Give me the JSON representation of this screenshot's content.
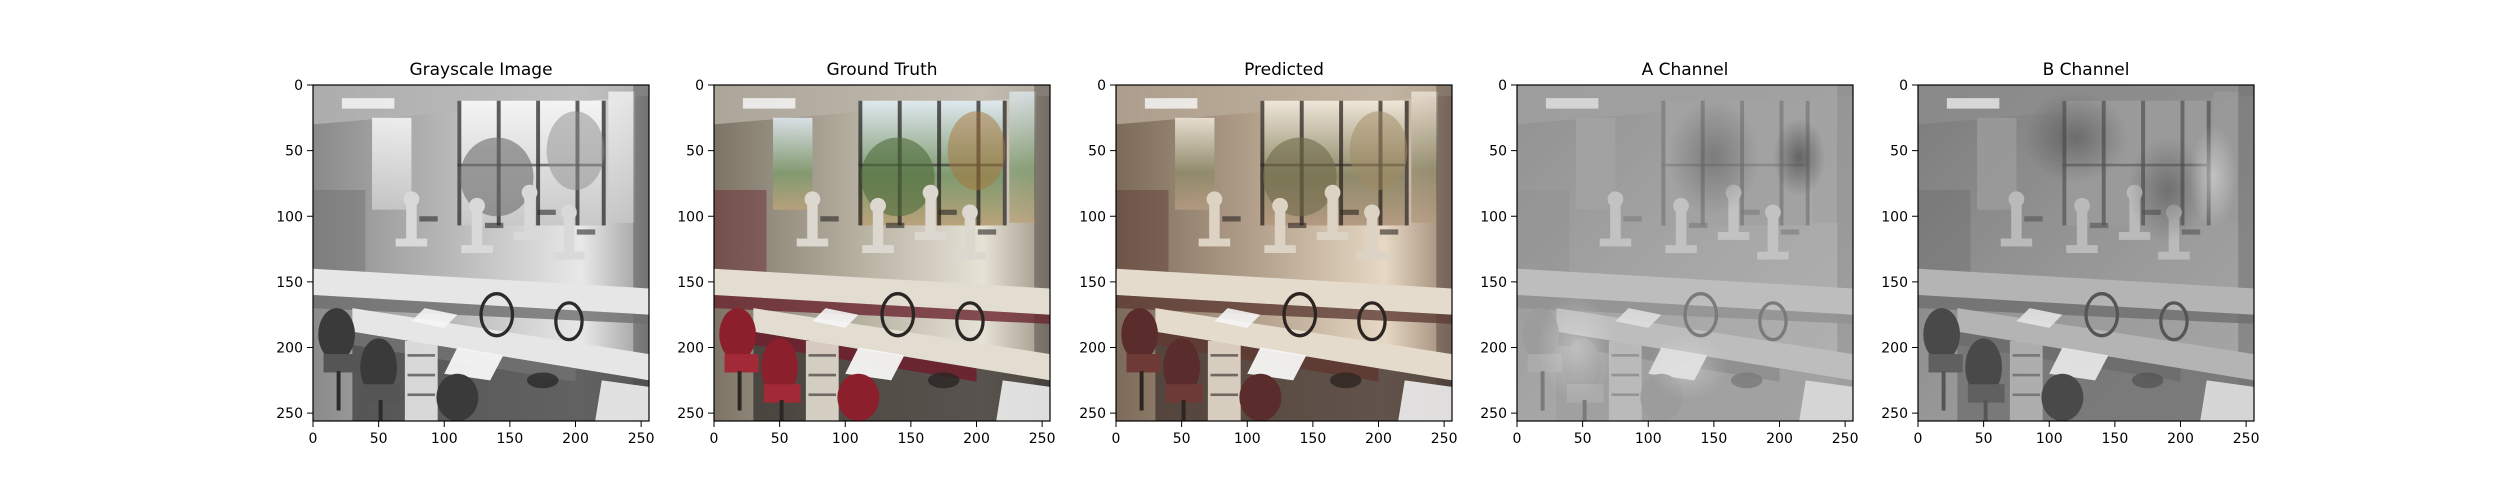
{
  "figure": {
    "panels": [
      {
        "title": "Grayscale Image",
        "variant": "gray"
      },
      {
        "title": "Ground Truth",
        "variant": "truth"
      },
      {
        "title": "Predicted",
        "variant": "pred"
      },
      {
        "title": "A Channel",
        "variant": "achan"
      },
      {
        "title": "B Channel",
        "variant": "bchan"
      }
    ],
    "x_ticks": [
      "0",
      "50",
      "100",
      "150",
      "200",
      "250"
    ],
    "y_ticks": [
      "0",
      "50",
      "100",
      "150",
      "200",
      "250"
    ],
    "tick_values": [
      0,
      50,
      100,
      150,
      200,
      250
    ],
    "image_extent": [
      0,
      256
    ]
  }
}
